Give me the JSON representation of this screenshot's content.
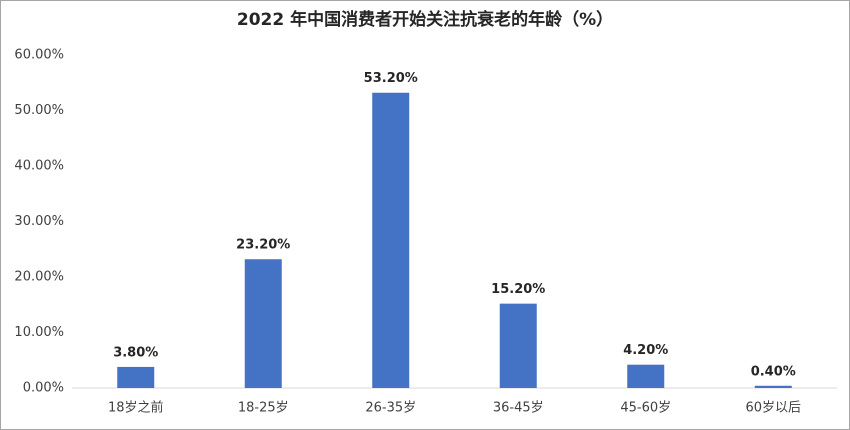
{
  "chart_data": {
    "type": "bar",
    "title": "2022 年中国消费者开始关注抗衰老的年龄（%）",
    "categories": [
      "18岁之前",
      "18-25岁",
      "26-35岁",
      "36-45岁",
      "45-60岁",
      "60岁以后"
    ],
    "values": [
      3.8,
      23.2,
      53.2,
      15.2,
      4.2,
      0.4
    ],
    "value_labels": [
      "3.80%",
      "23.20%",
      "53.20%",
      "15.20%",
      "4.20%",
      "0.40%"
    ],
    "color": "#4472c4",
    "ylim": [
      0,
      60
    ],
    "yticks": [
      {
        "value": 0,
        "label": "0.00%"
      },
      {
        "value": 10,
        "label": "10.00%"
      },
      {
        "value": 20,
        "label": "20.00%"
      },
      {
        "value": 30,
        "label": "30.00%"
      },
      {
        "value": 40,
        "label": "40.00%"
      },
      {
        "value": 50,
        "label": "50.00%"
      },
      {
        "value": 60,
        "label": "60.00%"
      }
    ],
    "grid": false
  }
}
